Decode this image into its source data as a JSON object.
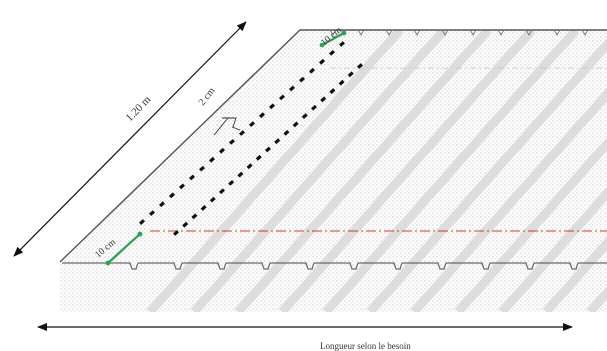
{
  "labels": {
    "slope_length": "1.20 m",
    "row_gap": "2 cm",
    "top_spacing": "10 cm",
    "bottom_spacing": "10 cm",
    "length_label": "Longueur selon le besoin"
  },
  "rows": [
    {
      "name": "upper-row",
      "dash_count": 21
    },
    {
      "name": "lower-row",
      "dash_count": 21
    }
  ],
  "colors": {
    "outline": "#555555",
    "fill_dot": "#9a9a9a",
    "stripe": "#d4d4d4",
    "dash": "#111111",
    "green": "#2f9e57",
    "red": "#c0392b",
    "arrow": "#111111"
  }
}
